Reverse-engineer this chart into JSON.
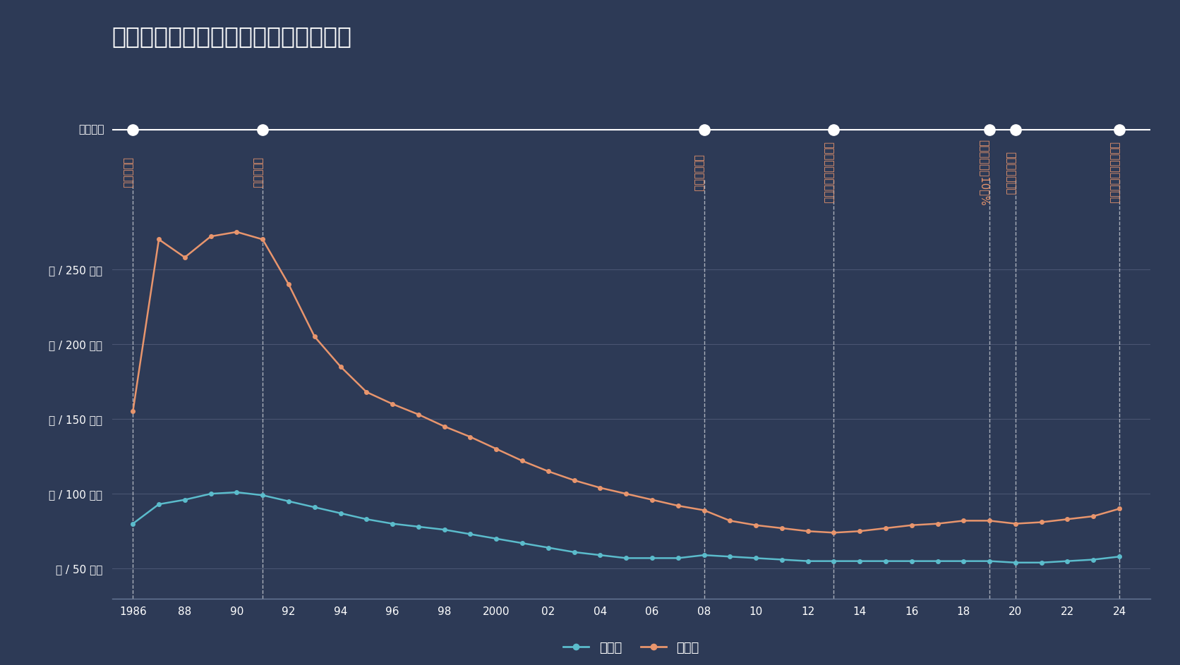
{
  "title": "横浜市栄区　土地価格の推移（平均）",
  "background_color": "#2d3a56",
  "grid_color": "#4a5572",
  "spine_color": "#6a7a99",
  "line_color_residential": "#5bbccc",
  "line_color_commercial": "#e8956d",
  "event_label_color": "#e8956d",
  "timeline_line_color": "#ffffff",
  "legend_residential": "住宅地",
  "legend_commercial": "商業地",
  "timeline_label": "経済年表",
  "ytick_labels": [
    "坪 / 50 万円",
    "坪 / 100 万円",
    "坪 / 150 万円",
    "坪 / 200 万円",
    "坪 / 250 万円"
  ],
  "yticks": [
    50,
    100,
    150,
    200,
    250
  ],
  "events": [
    {
      "year": 1986,
      "label": "栄区が発足"
    },
    {
      "year": 1991,
      "label": "バブル崩壊"
    },
    {
      "year": 2008,
      "label": "世界金融危機"
    },
    {
      "year": 2013,
      "label": "日銀　異次元金融緩和"
    },
    {
      "year": 2019,
      "label": "増税　消費税10．%"
    },
    {
      "year": 2020,
      "label": "コロナ感染拡大"
    },
    {
      "year": 2024,
      "label": "日銀　異次元緩和終了"
    }
  ],
  "residential_years": [
    1986,
    1987,
    1988,
    1989,
    1990,
    1991,
    1992,
    1993,
    1994,
    1995,
    1996,
    1997,
    1998,
    1999,
    2000,
    2001,
    2002,
    2003,
    2004,
    2005,
    2006,
    2007,
    2008,
    2009,
    2010,
    2011,
    2012,
    2013,
    2014,
    2015,
    2016,
    2017,
    2018,
    2019,
    2020,
    2021,
    2022,
    2023,
    2024
  ],
  "residential_values": [
    80,
    93,
    96,
    100,
    101,
    99,
    95,
    91,
    87,
    83,
    80,
    78,
    76,
    73,
    70,
    67,
    64,
    61,
    59,
    57,
    57,
    57,
    59,
    58,
    57,
    56,
    55,
    55,
    55,
    55,
    55,
    55,
    55,
    55,
    54,
    54,
    55,
    56,
    58
  ],
  "commercial_years": [
    1986,
    1987,
    1988,
    1989,
    1990,
    1991,
    1992,
    1993,
    1994,
    1995,
    1996,
    1997,
    1998,
    1999,
    2000,
    2001,
    2002,
    2003,
    2004,
    2005,
    2006,
    2007,
    2008,
    2009,
    2010,
    2011,
    2012,
    2013,
    2014,
    2015,
    2016,
    2017,
    2018,
    2019,
    2020,
    2021,
    2022,
    2023,
    2024
  ],
  "commercial_values": [
    155,
    270,
    258,
    272,
    275,
    270,
    240,
    205,
    185,
    168,
    160,
    153,
    145,
    138,
    130,
    122,
    115,
    109,
    104,
    100,
    96,
    92,
    89,
    82,
    79,
    77,
    75,
    74,
    75,
    77,
    79,
    80,
    82,
    82,
    80,
    81,
    83,
    85,
    90
  ],
  "ylim": [
    30,
    310
  ],
  "xlim_left": 1985.2,
  "xlim_right": 2025.2,
  "xtick_years": [
    1986,
    1988,
    1990,
    1992,
    1994,
    1996,
    1998,
    2000,
    2002,
    2004,
    2006,
    2008,
    2010,
    2012,
    2014,
    2016,
    2018,
    2020,
    2022,
    2024
  ],
  "xtick_labels": [
    "1986",
    "88",
    "90",
    "92",
    "94",
    "96",
    "98",
    "2000",
    "02",
    "04",
    "06",
    "08",
    "10",
    "12",
    "14",
    "16",
    "18",
    "20",
    "22",
    "24"
  ]
}
